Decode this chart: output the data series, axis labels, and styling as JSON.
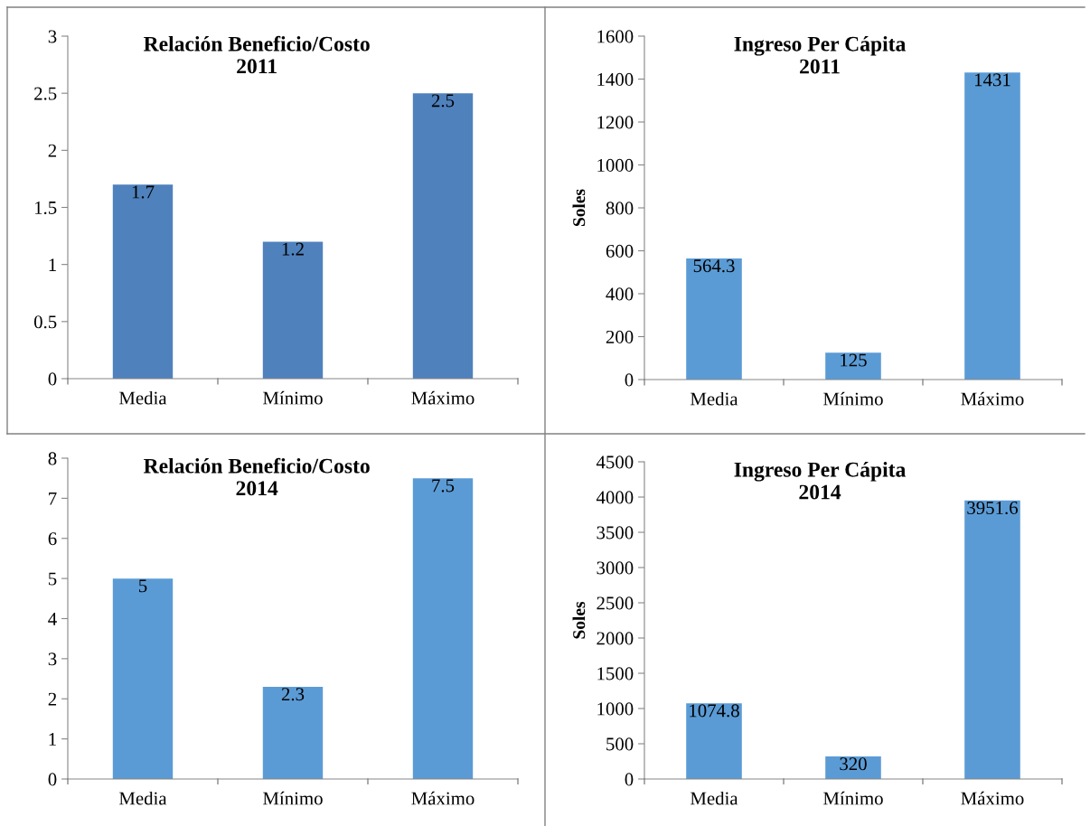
{
  "chart_data": [
    {
      "type": "bar",
      "title": "Relación Beneficio/Costo\n2011",
      "categories": [
        "Media",
        "Mínimo",
        "Máximo"
      ],
      "values": [
        1.7,
        1.2,
        2.5
      ],
      "color": "#4f81bd",
      "ylim": [
        0,
        3
      ],
      "yticks": [
        0,
        0.5,
        1,
        1.5,
        2,
        2.5,
        3
      ],
      "data_labels": true,
      "grid": false,
      "legend": false
    },
    {
      "type": "bar",
      "title": "Ingreso Per Cápita\n2011",
      "ylabel": "Soles",
      "categories": [
        "Media",
        "Mínimo",
        "Máximo"
      ],
      "values": [
        564.3,
        125,
        1431
      ],
      "color": "#5b9bd5",
      "ylim": [
        0,
        1600
      ],
      "yticks": [
        0,
        200,
        400,
        600,
        800,
        1000,
        1200,
        1400,
        1600
      ],
      "data_labels": true,
      "grid": false,
      "legend": false
    },
    {
      "type": "bar",
      "title": "Relación Beneficio/Costo\n2014",
      "categories": [
        "Media",
        "Mínimo",
        "Máximo"
      ],
      "values": [
        5,
        2.3,
        7.5
      ],
      "color": "#5b9bd5",
      "ylim": [
        0,
        8
      ],
      "yticks": [
        0,
        1,
        2,
        3,
        4,
        5,
        6,
        7,
        8
      ],
      "data_labels": true,
      "grid": false,
      "legend": false
    },
    {
      "type": "bar",
      "title": "Ingreso Per Cápita\n2014",
      "ylabel": "Soles",
      "categories": [
        "Media",
        "Mínimo",
        "Máximo"
      ],
      "values": [
        1074.8,
        320,
        3951.6
      ],
      "color": "#5b9bd5",
      "ylim": [
        0,
        4500
      ],
      "yticks": [
        0,
        500,
        1000,
        1500,
        2000,
        2500,
        3000,
        3500,
        4000,
        4500
      ],
      "data_labels": true,
      "grid": false,
      "legend": false
    }
  ]
}
